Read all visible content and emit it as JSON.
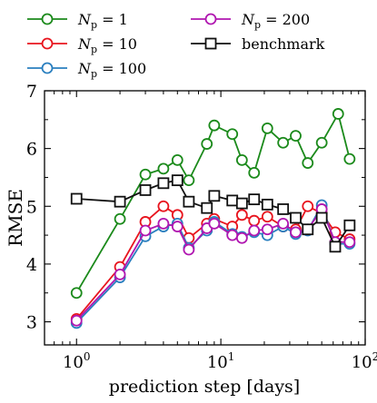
{
  "chart_data": {
    "type": "line",
    "xlabel": "prediction step [days]",
    "ylabel": "RMSE",
    "x_scale": "log",
    "xlim": [
      0.6,
      100
    ],
    "ylim": [
      2.6,
      7
    ],
    "x_ticks": [
      {
        "value": 1,
        "base": "10",
        "exp": "0"
      },
      {
        "value": 10,
        "base": "10",
        "exp": "1"
      },
      {
        "value": 100,
        "base": "10",
        "exp": "2"
      }
    ],
    "y_ticks": [
      3,
      4,
      5,
      6,
      7
    ],
    "grid": false,
    "legend_position": "top-left",
    "x": [
      1,
      2,
      3,
      4,
      5,
      6,
      8,
      9,
      12,
      13,
      17,
      18,
      22,
      27,
      34,
      41,
      50,
      51,
      62,
      66,
      77,
      78
    ],
    "series": [
      {
        "name_prefix": "N",
        "name_sub": "p",
        "name_suffix": " = 1",
        "color": "#1b8a1b",
        "marker": "circle",
        "points": [
          [
            1,
            3.5
          ],
          [
            2,
            4.78
          ],
          [
            3,
            5.55
          ],
          [
            4,
            5.65
          ],
          [
            5,
            5.8
          ],
          [
            6,
            5.45
          ],
          [
            8,
            6.08
          ],
          [
            9,
            6.4
          ],
          [
            12,
            6.25
          ],
          [
            14,
            5.8
          ],
          [
            17,
            5.58
          ],
          [
            21,
            6.35
          ],
          [
            27,
            6.1
          ],
          [
            33,
            6.22
          ],
          [
            40,
            5.75
          ],
          [
            50,
            6.1
          ],
          [
            65,
            6.6
          ],
          [
            78,
            5.82
          ]
        ]
      },
      {
        "name_prefix": "N",
        "name_sub": "p",
        "name_suffix": " = 10",
        "color": "#e8141e",
        "marker": "circle",
        "points": [
          [
            1,
            3.05
          ],
          [
            2,
            3.95
          ],
          [
            3,
            4.73
          ],
          [
            4,
            5.0
          ],
          [
            5,
            4.85
          ],
          [
            6,
            4.45
          ],
          [
            8,
            4.7
          ],
          [
            9,
            4.78
          ],
          [
            12,
            4.65
          ],
          [
            14,
            4.85
          ],
          [
            17,
            4.75
          ],
          [
            21,
            4.82
          ],
          [
            27,
            4.65
          ],
          [
            33,
            4.6
          ],
          [
            40,
            5.0
          ],
          [
            50,
            4.88
          ],
          [
            62,
            4.55
          ],
          [
            78,
            4.43
          ]
        ]
      },
      {
        "name_prefix": "N",
        "name_sub": "p",
        "name_suffix": " = 100",
        "color": "#2a7fbf",
        "marker": "circle",
        "points": [
          [
            1,
            2.98
          ],
          [
            2,
            3.77
          ],
          [
            3,
            4.48
          ],
          [
            4,
            4.65
          ],
          [
            5,
            4.7
          ],
          [
            6,
            4.28
          ],
          [
            8,
            4.58
          ],
          [
            9,
            4.73
          ],
          [
            12,
            4.52
          ],
          [
            14,
            4.47
          ],
          [
            17,
            4.55
          ],
          [
            21,
            4.5
          ],
          [
            27,
            4.65
          ],
          [
            33,
            4.52
          ],
          [
            40,
            4.58
          ],
          [
            50,
            5.02
          ],
          [
            62,
            4.35
          ],
          [
            78,
            4.35
          ]
        ]
      },
      {
        "name_prefix": "N",
        "name_sub": "p",
        "name_suffix": " = 200",
        "color": "#b016b0",
        "marker": "circle",
        "points": [
          [
            1,
            3.02
          ],
          [
            2,
            3.82
          ],
          [
            3,
            4.58
          ],
          [
            4,
            4.7
          ],
          [
            5,
            4.65
          ],
          [
            6,
            4.25
          ],
          [
            8,
            4.62
          ],
          [
            9,
            4.7
          ],
          [
            12,
            4.5
          ],
          [
            14,
            4.45
          ],
          [
            17,
            4.58
          ],
          [
            21,
            4.6
          ],
          [
            27,
            4.7
          ],
          [
            33,
            4.55
          ],
          [
            40,
            4.6
          ],
          [
            50,
            4.95
          ],
          [
            62,
            4.38
          ],
          [
            78,
            4.38
          ]
        ]
      },
      {
        "name": "benchmark",
        "color": "#111111",
        "marker": "square",
        "points": [
          [
            1,
            5.13
          ],
          [
            2,
            5.08
          ],
          [
            3,
            5.28
          ],
          [
            4,
            5.4
          ],
          [
            5,
            5.45
          ],
          [
            6,
            5.08
          ],
          [
            8,
            4.97
          ],
          [
            9,
            5.18
          ],
          [
            12,
            5.1
          ],
          [
            14,
            5.05
          ],
          [
            17,
            5.12
          ],
          [
            21,
            5.03
          ],
          [
            27,
            4.95
          ],
          [
            33,
            4.8
          ],
          [
            40,
            4.6
          ],
          [
            50,
            4.8
          ],
          [
            62,
            4.3
          ],
          [
            78,
            4.67
          ]
        ]
      }
    ]
  }
}
